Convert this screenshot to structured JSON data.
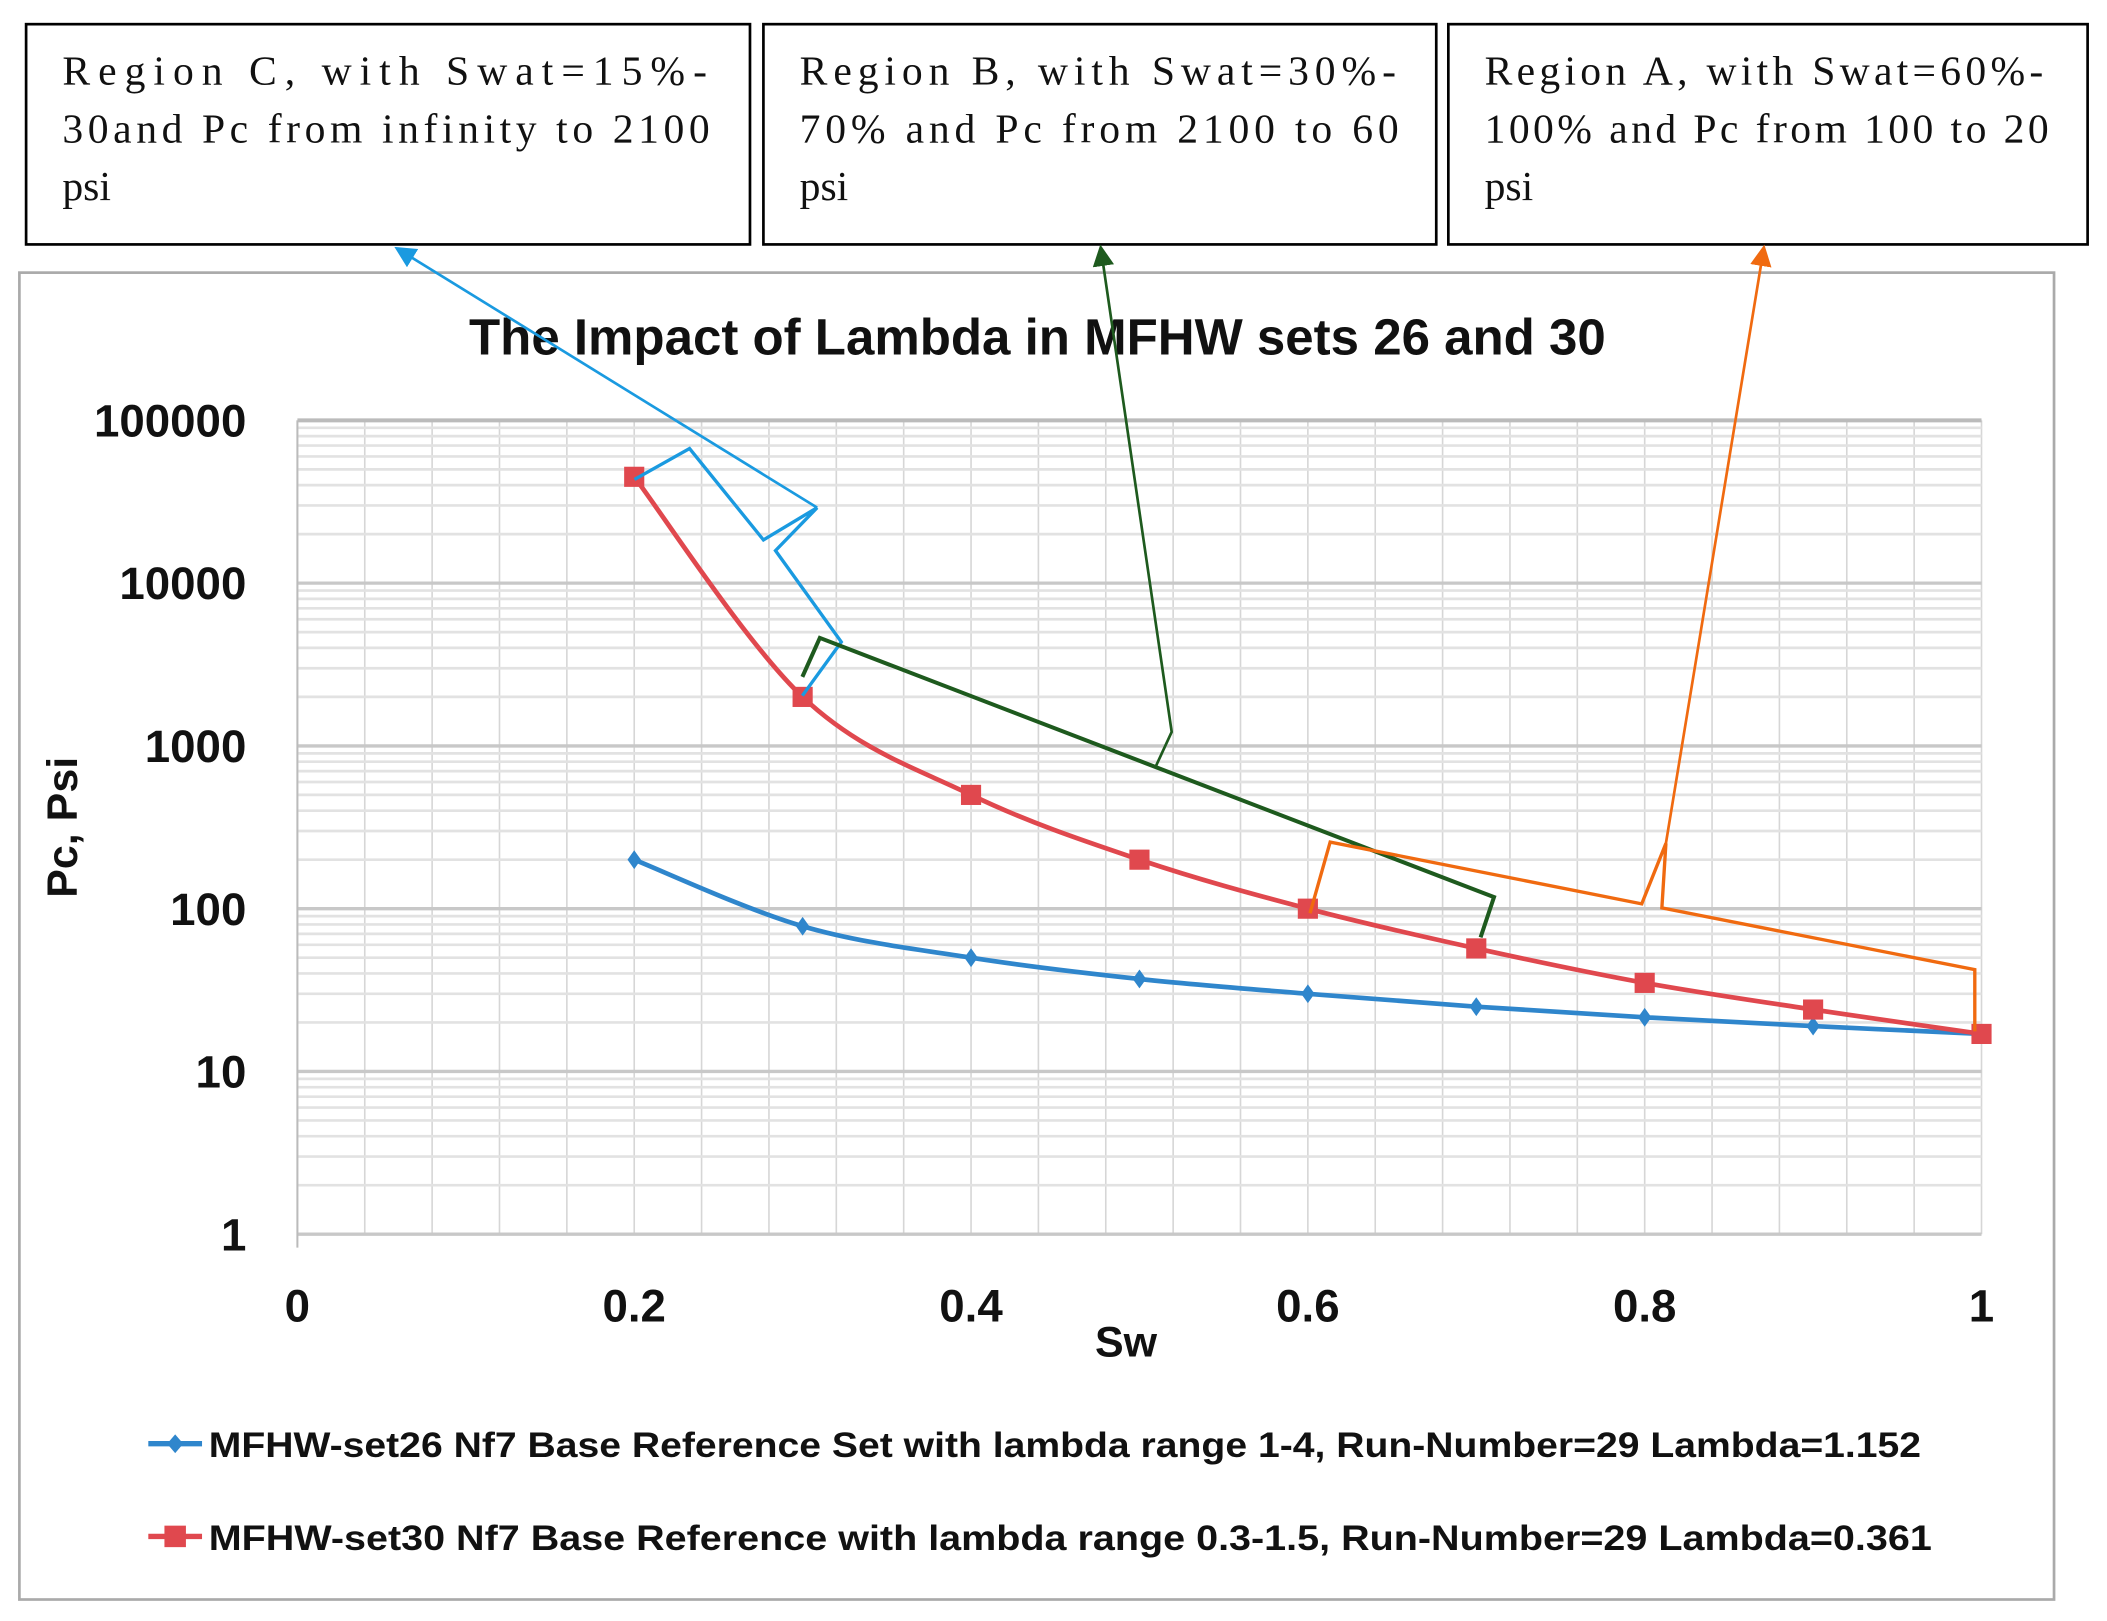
{
  "annotations": [
    {
      "id": "region-c",
      "lines": [
        "Region  C,  with  Swat=15%-",
        "30and  Pc  from  infinity  to  2100",
        "psi"
      ],
      "color": "#1a9ae0"
    },
    {
      "id": "region-b",
      "lines": [
        "Region  B,  with  Swat=30%-",
        "70%  and  Pc  from  2100  to  60",
        "psi"
      ],
      "color": "#1e5a1e"
    },
    {
      "id": "region-a",
      "lines": [
        "Region  A,  with  Swat=60%-",
        "100% and Pc from 100 to 20",
        "psi"
      ],
      "color": "#f06a10"
    }
  ],
  "chart_data": {
    "type": "line",
    "title": "The Impact of Lambda in MFHW sets 26 and 30",
    "xlabel": "Sw",
    "ylabel": "Pc, Psi",
    "xlim": [
      0,
      1
    ],
    "ylim": [
      1,
      100000
    ],
    "yscale": "log",
    "grid": true,
    "legend_position": "bottom",
    "x_ticks": [
      "0",
      "0.2",
      "0.4",
      "0.6",
      "0.8",
      "1"
    ],
    "y_ticks": [
      "1",
      "10",
      "100",
      "1000",
      "10000",
      "100000"
    ],
    "x": [
      0.2,
      0.3,
      0.4,
      0.5,
      0.6,
      0.7,
      0.8,
      0.9,
      1.0
    ],
    "series": [
      {
        "name": "MFHW-set26 Nf7 Base Reference Set with lambda range 1-4, Run-Number=29 Lambda=1.152",
        "color": "#2f86cc",
        "marker": "diamond",
        "values": [
          200,
          78,
          50,
          37,
          30,
          25,
          21.5,
          19,
          17
        ]
      },
      {
        "name": "MFHW-set30 Nf7 Base Reference with lambda range 0.3-1.5,  Run-Number=29 Lambda=0.361",
        "color": "#e0484e",
        "marker": "square",
        "values": [
          45000,
          2000,
          500,
          200,
          100,
          57,
          35,
          24,
          17
        ]
      }
    ]
  }
}
